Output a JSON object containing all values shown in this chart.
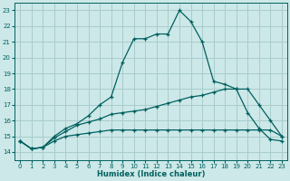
{
  "xlabel": "Humidex (Indice chaleur)",
  "xlim": [
    -0.5,
    23.5
  ],
  "ylim": [
    13.5,
    23.5
  ],
  "xticks": [
    0,
    1,
    2,
    3,
    4,
    5,
    6,
    7,
    8,
    9,
    10,
    11,
    12,
    13,
    14,
    15,
    16,
    17,
    18,
    19,
    20,
    21,
    22,
    23
  ],
  "yticks": [
    14,
    15,
    16,
    17,
    18,
    19,
    20,
    21,
    22,
    23
  ],
  "background_color": "#cde8e8",
  "grid_color": "#a8cccc",
  "line_color": "#006060",
  "line1_y": [
    14.7,
    14.2,
    14.3,
    15.0,
    15.5,
    15.8,
    16.3,
    17.0,
    17.5,
    19.7,
    21.2,
    21.2,
    21.5,
    21.5,
    23.0,
    22.3,
    21.0,
    18.5,
    18.3,
    18.0,
    16.5,
    15.5,
    14.8,
    14.7
  ],
  "line2_y": [
    14.7,
    14.2,
    14.3,
    14.7,
    15.0,
    15.1,
    15.2,
    15.3,
    15.4,
    15.4,
    15.4,
    15.4,
    15.4,
    15.4,
    15.4,
    15.4,
    15.4,
    15.4,
    15.4,
    15.4,
    15.4,
    15.4,
    15.4,
    15.0
  ],
  "line3_y": [
    14.7,
    14.2,
    14.3,
    14.9,
    15.3,
    15.7,
    15.9,
    16.1,
    16.4,
    16.5,
    16.6,
    16.7,
    16.9,
    17.1,
    17.3,
    17.5,
    17.6,
    17.8,
    18.0,
    18.0,
    18.0,
    17.0,
    16.0,
    15.0
  ]
}
